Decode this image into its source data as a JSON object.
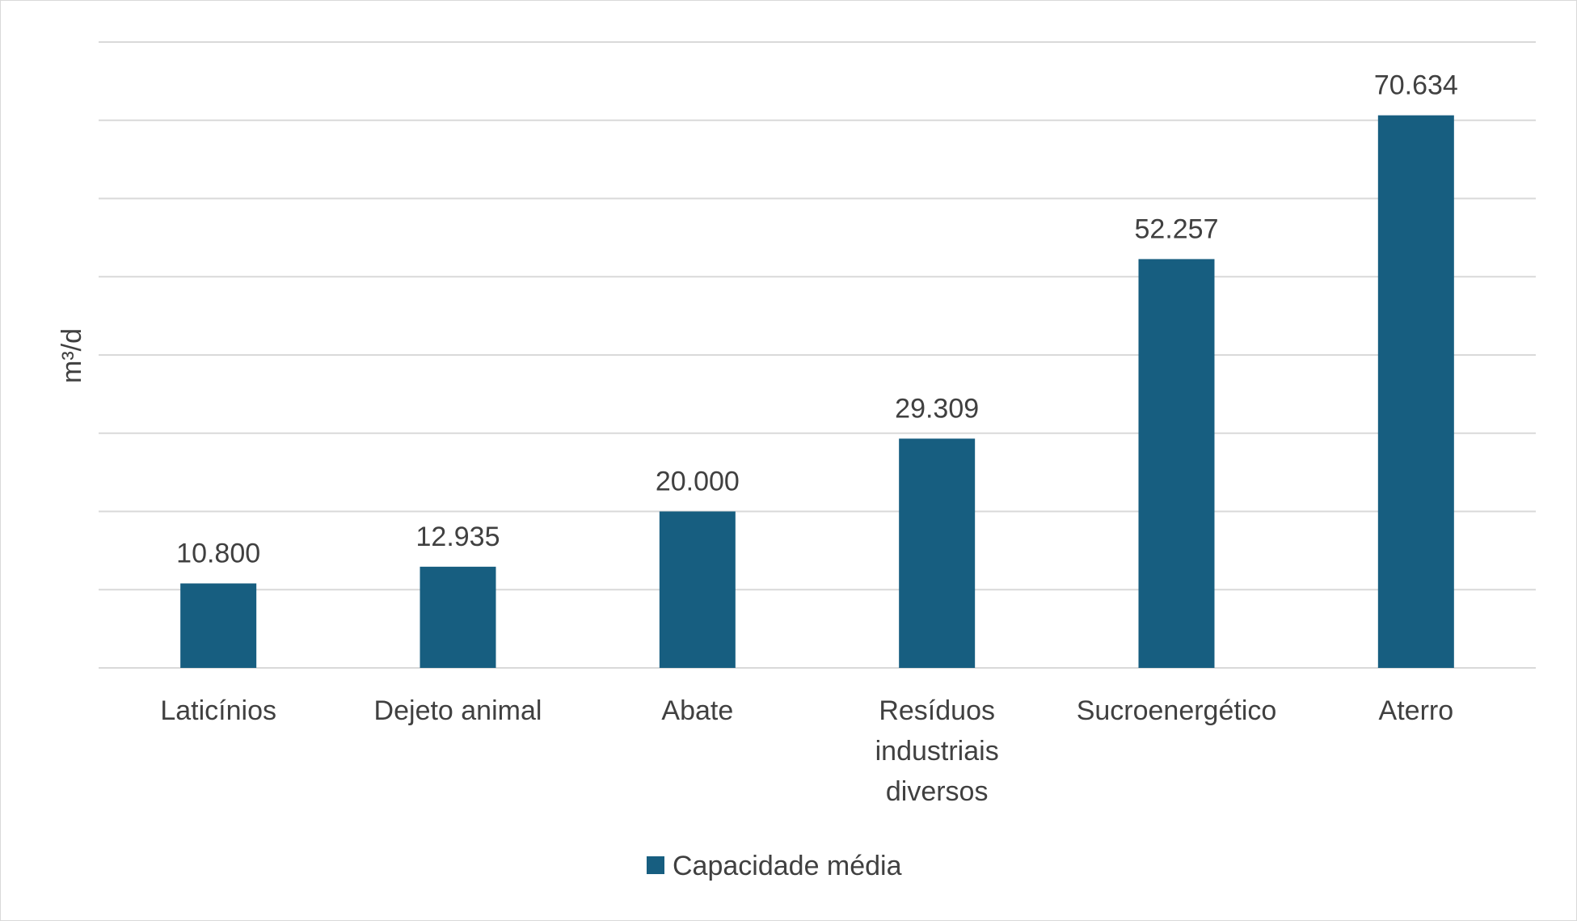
{
  "chart_data": {
    "type": "bar",
    "title": "",
    "xlabel": "",
    "ylabel": "m³/d",
    "ylim": [
      0,
      80000
    ],
    "grid": true,
    "categories": [
      [
        "Laticínios"
      ],
      [
        "Dejeto animal"
      ],
      [
        "Abate"
      ],
      [
        "Resíduos",
        "industriais",
        "diversos"
      ],
      [
        "Sucroenergético"
      ],
      [
        "Aterro"
      ]
    ],
    "series": [
      {
        "name": "Capacidade média",
        "color": "#175e80",
        "values": [
          10800,
          12935,
          20000,
          29309,
          52257,
          70634
        ],
        "labels": [
          "10.800",
          "12.935",
          "20.000",
          "29.309",
          "52.257",
          "70.634"
        ]
      }
    ],
    "legend": {
      "position": "bottom",
      "label": "Capacidade média"
    }
  }
}
